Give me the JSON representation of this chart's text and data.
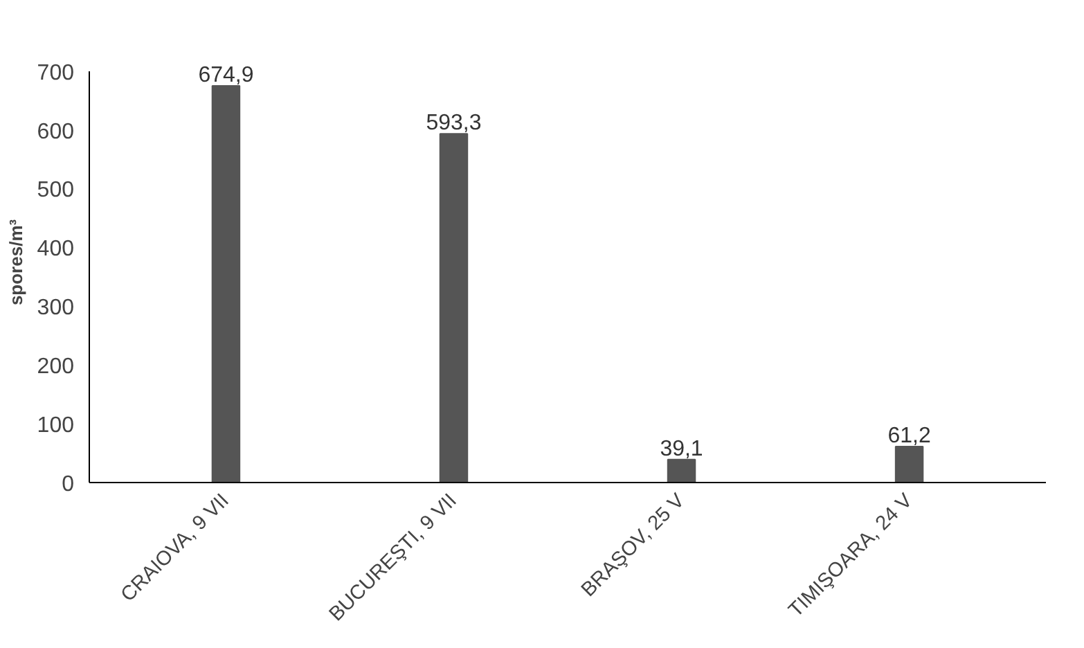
{
  "chart_data": {
    "type": "bar",
    "ylabel": "spores/m³",
    "categories": [
      "CRAIOVA, 9 VII",
      "BUCUREŞTI, 9 VII",
      "BRAŞOV, 25 V",
      "TIMIŞOARA, 24 V"
    ],
    "values": [
      674.9,
      593.3,
      39.1,
      61.2
    ],
    "value_labels": [
      "674,9",
      "593,3",
      "39,1",
      "61,2"
    ],
    "color": "#555555",
    "ylim": [
      0,
      700
    ],
    "yticks": [
      0,
      100,
      200,
      300,
      400,
      500,
      600,
      700
    ],
    "grid": false
  }
}
